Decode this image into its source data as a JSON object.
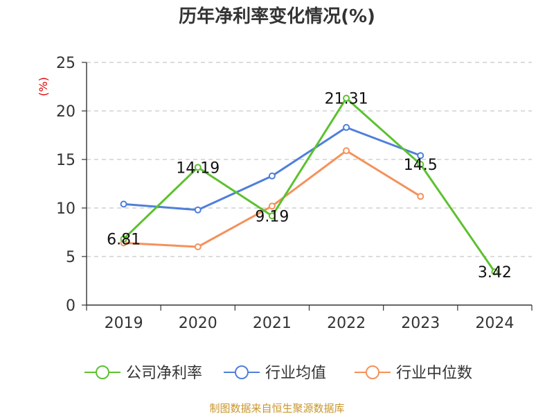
{
  "chart_data": {
    "type": "line",
    "title": "历年净利率变化情况(%)",
    "unit_label": "(%)",
    "categories": [
      "2019",
      "2020",
      "2021",
      "2022",
      "2023",
      "2024"
    ],
    "ylim": [
      0,
      25
    ],
    "yticks": [
      0,
      5,
      10,
      15,
      20,
      25
    ],
    "grid": true,
    "legend_position": "bottom",
    "series": [
      {
        "name": "公司净利率",
        "color": "#5cc12f",
        "values": [
          6.81,
          14.19,
          9.19,
          21.31,
          14.5,
          3.42
        ],
        "labels": [
          "6.81",
          "14.19",
          "9.19",
          "21.31",
          "14.5",
          "3.42"
        ]
      },
      {
        "name": "行业均值",
        "color": "#4f7fdb",
        "values": [
          10.4,
          9.8,
          13.3,
          18.3,
          15.4,
          null
        ]
      },
      {
        "name": "行业中位数",
        "color": "#f5915a",
        "values": [
          6.4,
          6.0,
          10.2,
          15.9,
          11.2,
          null
        ]
      }
    ],
    "source": "制图数据来自恒生聚源数据库"
  }
}
